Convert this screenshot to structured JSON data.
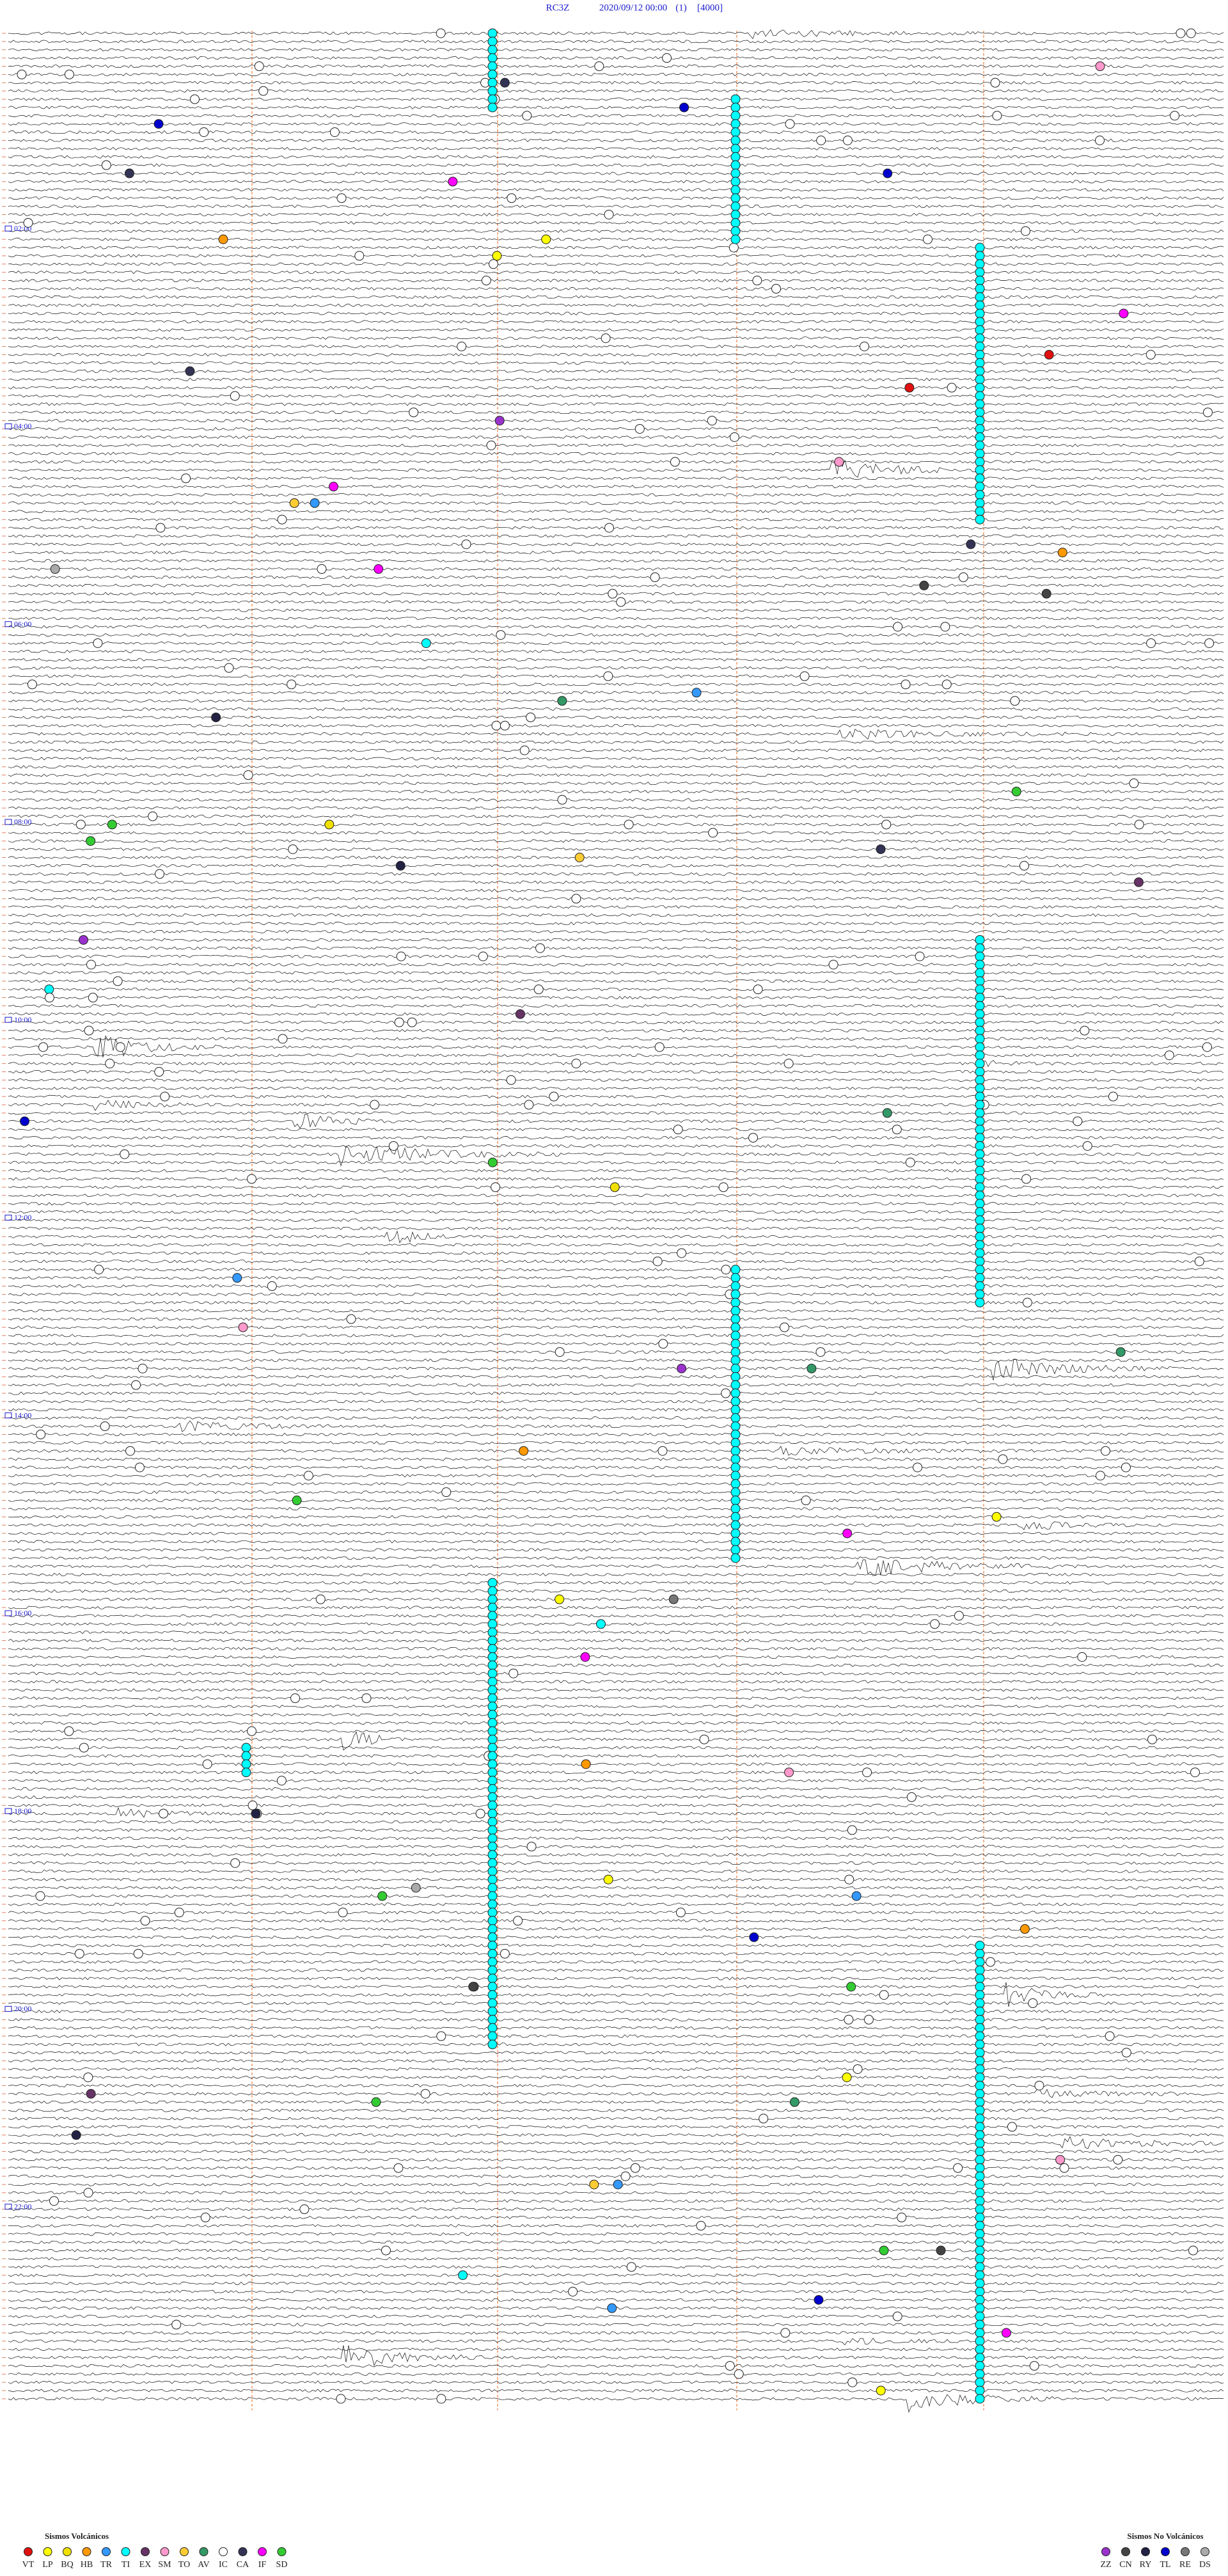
{
  "header": {
    "station": "RC3Z",
    "datetime": "2020/09/12 00:00",
    "channel": "(1)",
    "scale": "[4000]"
  },
  "hour_labels": [
    "02:00",
    "04:00",
    "06:00",
    "08:00",
    "10:00",
    "12:00",
    "14:00",
    "16:00",
    "18:00",
    "20:00",
    "22:00"
  ],
  "legend_volcanic": {
    "title": "Sismos Volcánicos",
    "items": [
      {
        "label": "VT",
        "color": "#e01010"
      },
      {
        "label": "LP",
        "color": "#ffff00"
      },
      {
        "label": "BQ",
        "color": "#f0e000"
      },
      {
        "label": "HB",
        "color": "#ff9900"
      },
      {
        "label": "TR",
        "color": "#3399ff"
      },
      {
        "label": "TI",
        "color": "#00ffff"
      },
      {
        "label": "EX",
        "color": "#663366"
      },
      {
        "label": "SM",
        "color": "#ff99cc"
      },
      {
        "label": "TO",
        "color": "#ffcc33"
      },
      {
        "label": "AV",
        "color": "#339966"
      },
      {
        "label": "IC",
        "color": "#ffffff"
      },
      {
        "label": "CA",
        "color": "#333355"
      },
      {
        "label": "IF",
        "color": "#ff00ff"
      },
      {
        "label": "SD",
        "color": "#33cc33"
      }
    ]
  },
  "legend_non_volcanic": {
    "title": "Sismos No Volcánicos",
    "items": [
      {
        "label": "ZZ",
        "color": "#9933cc"
      },
      {
        "label": "CN",
        "color": "#444444"
      },
      {
        "label": "RY",
        "color": "#222244"
      },
      {
        "label": "TL",
        "color": "#0000cc"
      },
      {
        "label": "RE",
        "color": "#777777"
      },
      {
        "label": "DS",
        "color": "#aaaaaa"
      }
    ]
  }
}
